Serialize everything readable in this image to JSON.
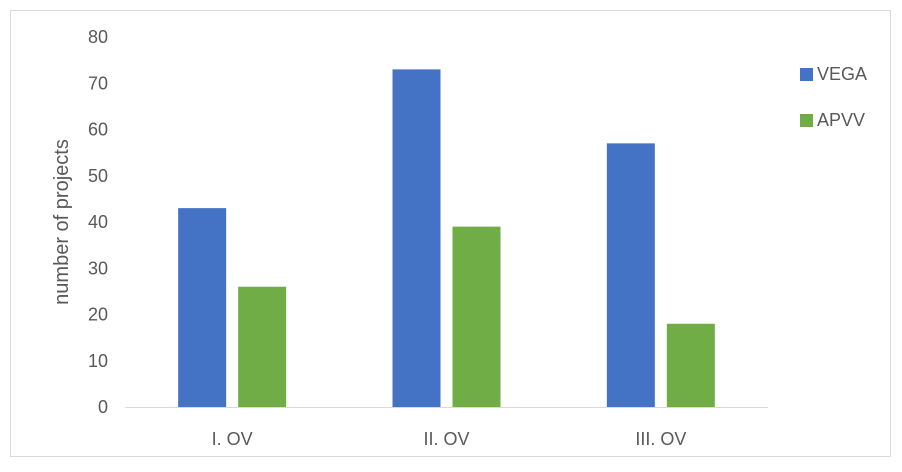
{
  "chart_data": {
    "type": "bar",
    "categories": [
      "I. OV",
      "II. OV",
      "III. OV"
    ],
    "series": [
      {
        "name": "VEGA",
        "color": "#4472C4",
        "values": [
          43,
          73,
          57
        ]
      },
      {
        "name": "APVV",
        "color": "#70AD47",
        "values": [
          26,
          39,
          18
        ]
      }
    ],
    "title": "",
    "xlabel": "",
    "ylabel": "number of projects",
    "ylim": [
      0,
      80
    ],
    "yticks": [
      0,
      10,
      20,
      30,
      40,
      50,
      60,
      70,
      80
    ],
    "grid": false,
    "legend_position": "right"
  }
}
